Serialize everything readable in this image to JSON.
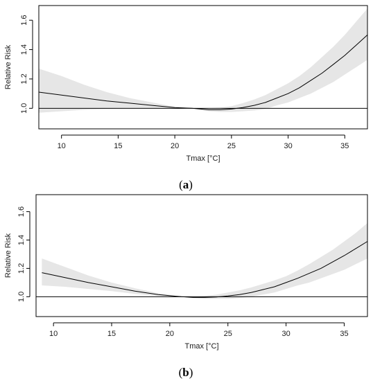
{
  "chart_data": [
    {
      "type": "line",
      "panel_label": "(a)",
      "panel_letter": "a",
      "xlabel": "Tmax [°C]",
      "ylabel": "Relative Risk",
      "xlim": [
        8,
        37
      ],
      "ylim": [
        0.86,
        1.7
      ],
      "xticks": [
        10,
        15,
        20,
        25,
        30,
        35
      ],
      "yticks": [
        1.0,
        1.2,
        1.4,
        1.6
      ],
      "ytick_labels": [
        "1.0",
        "1.2",
        "1.4",
        "1.6"
      ],
      "reference_line": 1.0,
      "line_color": "#000000",
      "band_color": "#e6e6e6",
      "series": [
        {
          "x": [
            8,
            10,
            12,
            14,
            16,
            18,
            20,
            21.5,
            23,
            24,
            25,
            26,
            27,
            28,
            29,
            30,
            31,
            32,
            33,
            34,
            35,
            36,
            37
          ],
          "y": [
            1.11,
            1.09,
            1.07,
            1.05,
            1.035,
            1.02,
            1.005,
            1.0,
            0.99,
            0.99,
            0.995,
            1.005,
            1.02,
            1.04,
            1.07,
            1.1,
            1.14,
            1.19,
            1.24,
            1.3,
            1.36,
            1.43,
            1.5
          ],
          "lower": [
            0.97,
            0.98,
            0.99,
            0.995,
            1.0,
            1.0,
            1.0,
            1.0,
            0.98,
            0.975,
            0.975,
            0.98,
            0.985,
            0.995,
            1.02,
            1.04,
            1.07,
            1.1,
            1.14,
            1.18,
            1.23,
            1.28,
            1.33
          ],
          "upper": [
            1.27,
            1.22,
            1.16,
            1.11,
            1.07,
            1.04,
            1.01,
            1.0,
            1.0,
            1.005,
            1.015,
            1.035,
            1.06,
            1.09,
            1.13,
            1.17,
            1.22,
            1.28,
            1.35,
            1.42,
            1.5,
            1.59,
            1.68
          ]
        }
      ]
    },
    {
      "type": "line",
      "panel_label": "(b)",
      "panel_letter": "b",
      "xlabel": "Tmax [°C]",
      "ylabel": "Relative Risk",
      "xlim": [
        8.5,
        37
      ],
      "ylim": [
        0.86,
        1.72
      ],
      "xticks": [
        10,
        15,
        20,
        25,
        30,
        35
      ],
      "yticks": [
        1.0,
        1.2,
        1.4,
        1.6
      ],
      "ytick_labels": [
        "1.0",
        "1.2",
        "1.4",
        "1.6"
      ],
      "reference_line": 1.0,
      "line_color": "#000000",
      "band_color": "#e6e6e6",
      "series": [
        {
          "x": [
            9,
            11,
            13,
            15,
            17,
            19,
            21,
            22,
            23,
            24,
            25,
            26,
            27,
            28,
            29,
            30,
            31,
            32,
            33,
            34,
            35,
            36,
            37
          ],
          "y": [
            1.17,
            1.135,
            1.1,
            1.07,
            1.04,
            1.015,
            1.0,
            0.995,
            0.995,
            0.998,
            1.005,
            1.015,
            1.03,
            1.05,
            1.07,
            1.1,
            1.13,
            1.165,
            1.2,
            1.245,
            1.29,
            1.34,
            1.39
          ],
          "lower": [
            1.08,
            1.07,
            1.055,
            1.04,
            1.02,
            1.005,
            1.0,
            0.99,
            0.985,
            0.985,
            0.985,
            0.99,
            1.0,
            1.015,
            1.03,
            1.055,
            1.08,
            1.1,
            1.13,
            1.16,
            1.19,
            1.23,
            1.27
          ],
          "upper": [
            1.27,
            1.21,
            1.15,
            1.1,
            1.06,
            1.025,
            1.0,
            1.0,
            1.005,
            1.015,
            1.03,
            1.045,
            1.065,
            1.09,
            1.115,
            1.145,
            1.185,
            1.23,
            1.28,
            1.33,
            1.39,
            1.45,
            1.52
          ]
        }
      ]
    }
  ]
}
